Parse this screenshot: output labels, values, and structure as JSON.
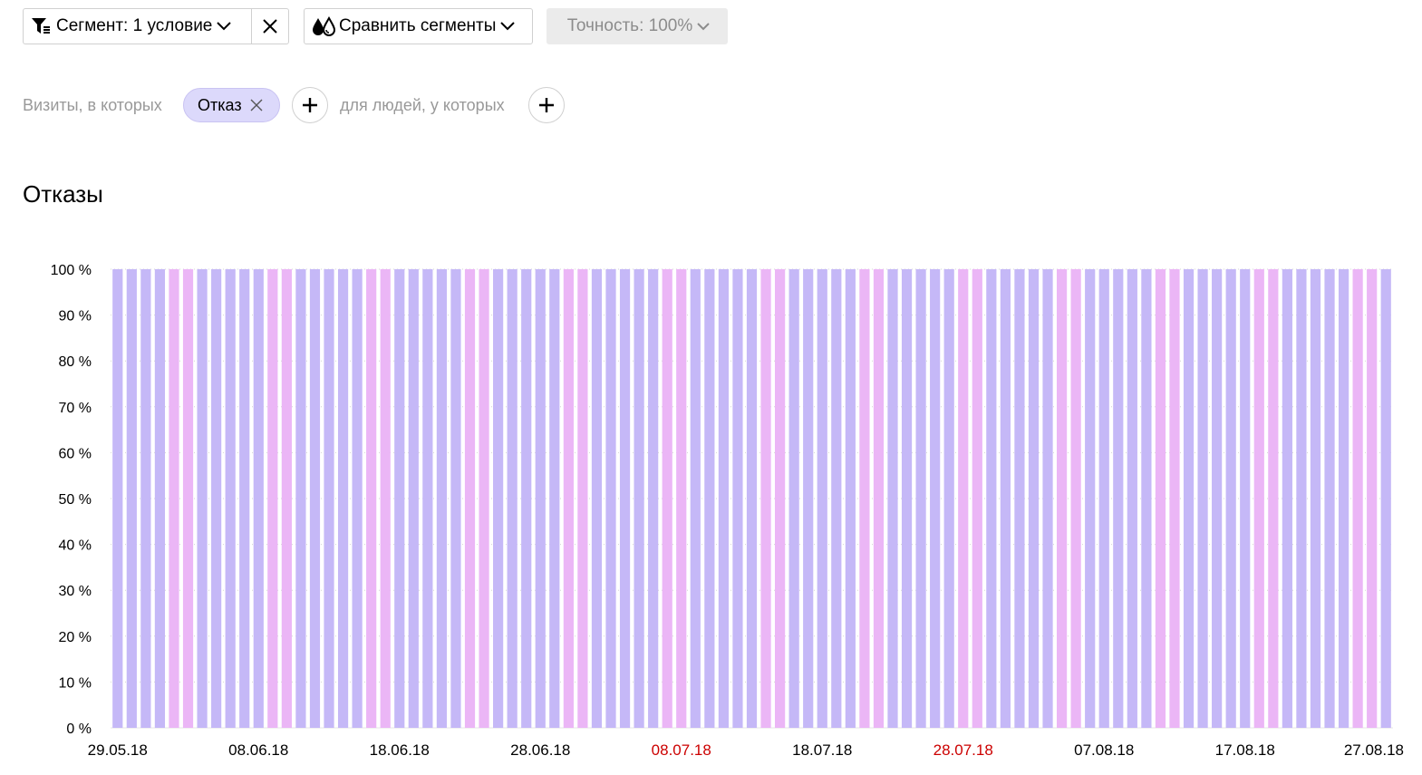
{
  "toolbar": {
    "segment_label": "Сегмент: 1 условие",
    "compare_label": "Сравнить сегменты",
    "precision_label": "Точность: 100%"
  },
  "filter": {
    "visits_label": "Визиты, в которых",
    "chip_label": "Отказ",
    "people_label": "для людей, у которых"
  },
  "section": {
    "title": "Отказы"
  },
  "icons": {
    "segment": "filter-icon",
    "chevron": "chevron-down-icon",
    "clear": "close-icon",
    "compare": "drops-icon",
    "add": "plus-icon"
  },
  "colors": {
    "bar_weekday": "#c5b8f7",
    "bar_weekend": "#ebb6f6",
    "tick_holiday": "#cc0000",
    "tick_normal": "#000000"
  },
  "chart_data": {
    "type": "bar",
    "ylabel": "",
    "xlabel": "",
    "ylim": [
      0,
      100
    ],
    "y_ticks": [
      "0 %",
      "10 %",
      "20 %",
      "30 %",
      "40 %",
      "50 %",
      "60 %",
      "70 %",
      "80 %",
      "90 %",
      "100 %"
    ],
    "x_start": "29.05.18",
    "x_end": "27.08.18",
    "x_ticks": [
      {
        "label": "29.05.18",
        "weekend": false
      },
      {
        "label": "08.06.18",
        "weekend": false
      },
      {
        "label": "18.06.18",
        "weekend": false
      },
      {
        "label": "28.06.18",
        "weekend": false
      },
      {
        "label": "08.07.18",
        "weekend": true
      },
      {
        "label": "18.07.18",
        "weekend": false
      },
      {
        "label": "28.07.18",
        "weekend": true
      },
      {
        "label": "07.08.18",
        "weekend": false
      },
      {
        "label": "17.08.18",
        "weekend": false
      },
      {
        "label": "27.08.18",
        "weekend": false
      }
    ],
    "series": [
      {
        "value_percent": 100,
        "count_days": 91,
        "first_weekend_day_index": 4
      }
    ]
  }
}
